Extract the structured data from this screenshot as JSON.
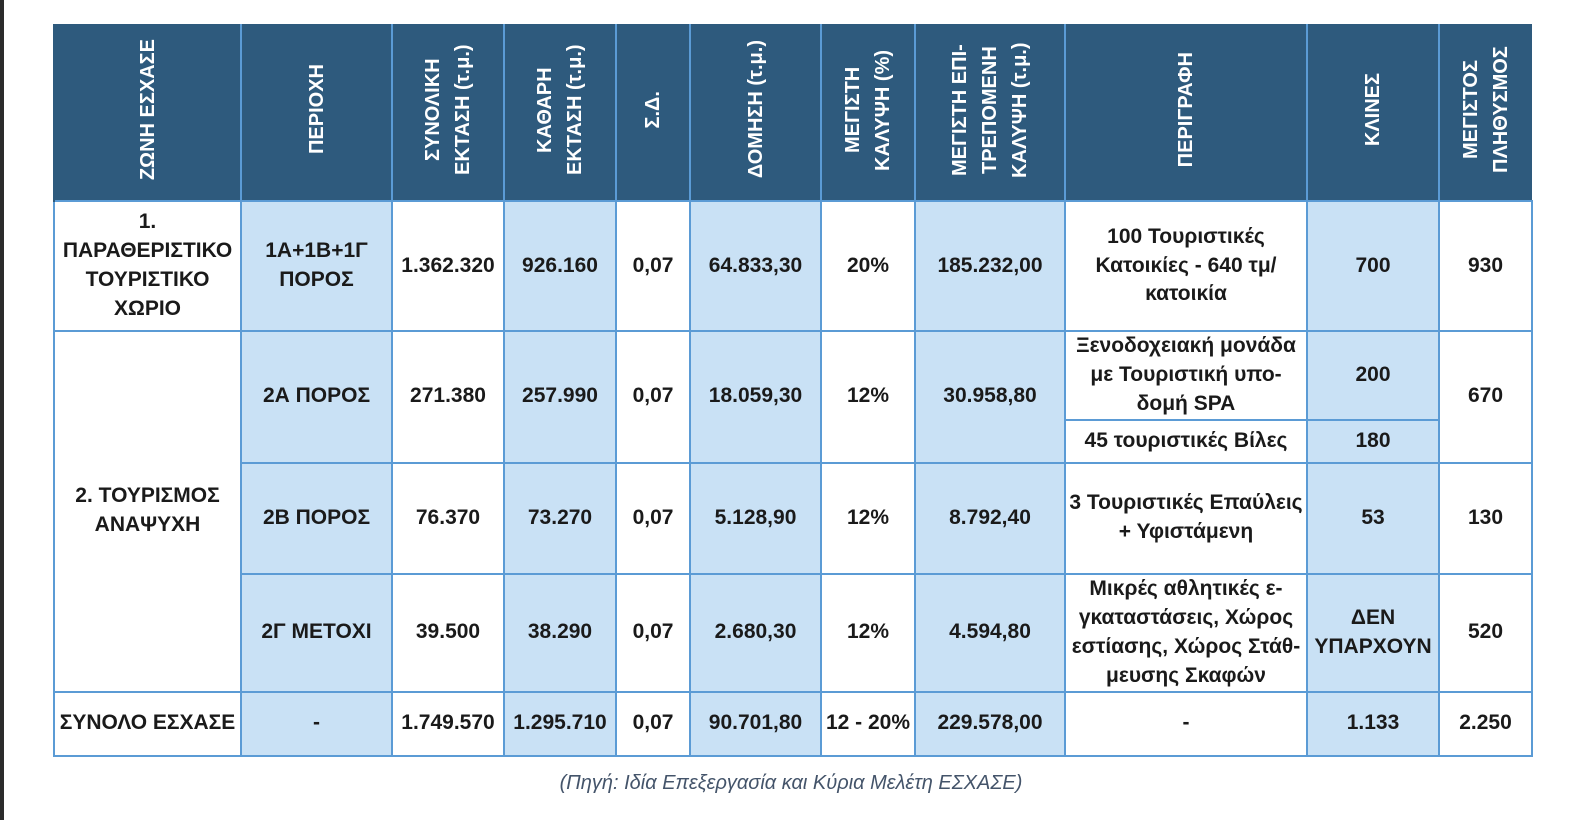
{
  "headers": {
    "zone": "ΖΩΝΗ ΕΣΧΑΣΕ",
    "area": "ΠΕΡΙΟΧΗ",
    "total": "ΣΥΝΟΛΙΚΗ ΕΚΤΑΣΗ (τ.μ.)",
    "net": "ΚΑΘΑΡΗ ΕΚΤΑΣΗ (τ.μ.)",
    "sd": "Σ.Δ.",
    "build": "ΔΟΜΗΣΗ (τ.μ.)",
    "cover": "ΜΕΓΙΣΤΗ ΚΑΛΥΨΗ (%)",
    "maxcover": "ΜΕΓΙΣΤΗ ΕΠΙ-ΤΡΕΠΟΜΕΝΗ ΚΑΛΥΨΗ (τ.μ.)",
    "desc": "ΠΕΡΙΓΡΑΦΗ",
    "beds": "ΚΛΙΝΕΣ",
    "pop": "ΜΕΓΙΣΤΟΣ ΠΛΗΘΥΣΜΟΣ"
  },
  "zones": {
    "z1": "1. ΠΑΡΑΘΕΡΙΣΤΙΚΟ ΤΟΥΡΙΣΤΙΚΟ ΧΩΡΙΟ",
    "z2": "2. ΤΟΥΡΙΣΜΟΣ ΑΝΑΨΥΧΗ",
    "sum": "ΣΥΝΟΛΟ ΕΣΧΑΣΕ"
  },
  "rows": [
    {
      "area": "1Α+1Β+1Γ ΠΟΡΟΣ",
      "total": "1.362.320",
      "net": "926.160",
      "sd": "0,07",
      "build": "64.833,30",
      "cover": "20%",
      "maxcover": "185.232,00",
      "desc": "100 Τουριστικές Κατοικίες - 640 τμ/κατοικία",
      "beds": "700",
      "pop": "930"
    },
    {
      "area": "2Α ΠΟΡΟΣ",
      "total": "271.380",
      "net": "257.990",
      "sd": "0,07",
      "build": "18.059,30",
      "cover": "12%",
      "maxcover": "30.958,80",
      "desc": "Ξενοδοχειακή μονάδα με Τουριστική υπο-δομή SPA",
      "beds": "200",
      "desc2": "45 τουριστικές Βίλες",
      "beds2": "180",
      "pop": "670"
    },
    {
      "area": "2Β ΠΟΡΟΣ",
      "total": "76.370",
      "net": "73.270",
      "sd": "0,07",
      "build": "5.128,90",
      "cover": "12%",
      "maxcover": "8.792,40",
      "desc": "3 Τουριστικές Επαύλεις + Υφιστάμενη",
      "beds": "53",
      "pop": "130"
    },
    {
      "area": "2Γ ΜΕΤΟΧΙ",
      "total": "39.500",
      "net": "38.290",
      "sd": "0,07",
      "build": "2.680,30",
      "cover": "12%",
      "maxcover": "4.594,80",
      "desc": "Μικρές αθλητικές ε-γκαταστάσεις, Χώρος εστίασης, Χώρος Στάθ-μευσης Σκαφών",
      "beds": "ΔΕΝ ΥΠΑΡΧΟΥΝ",
      "pop": "520"
    }
  ],
  "totals": {
    "area": "-",
    "total": "1.749.570",
    "net": "1.295.710",
    "sd": "0,07",
    "build": "90.701,80",
    "cover": "12 - 20%",
    "maxcover": "229.578,00",
    "desc": "-",
    "beds": "1.133",
    "pop": "2.250"
  },
  "caption": "(Πηγή: Ιδία Επεξεργασία και Κύρια Μελέτη ΕΣΧΑΣΕ)"
}
